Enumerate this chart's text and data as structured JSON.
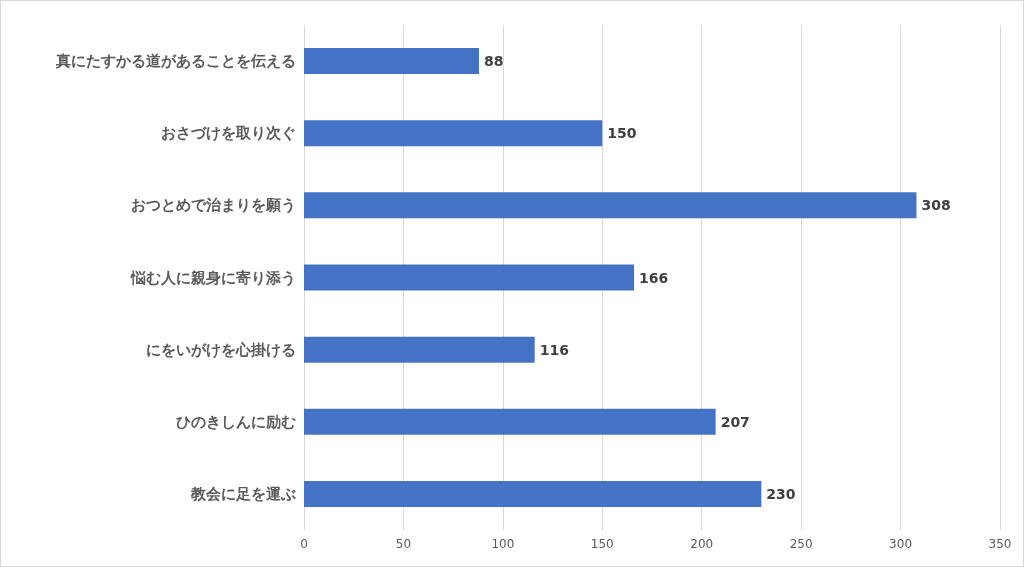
{
  "chart_data": {
    "type": "bar",
    "orientation": "horizontal",
    "categories": [
      "真にたすかる道があることを伝える",
      "おさづけを取り次ぐ",
      "おつとめで治まりを願う",
      "悩む人に親身に寄り添う",
      "にをいがけを心掛ける",
      "ひのきしんに励む",
      "教会に足を運ぶ"
    ],
    "values": [
      88,
      150,
      308,
      166,
      116,
      207,
      230
    ],
    "color": "#4472c4",
    "xlim": [
      0,
      350
    ],
    "xticks": [
      0,
      50,
      100,
      150,
      200,
      250,
      300,
      350
    ],
    "grid": "x",
    "data_labels": true
  }
}
